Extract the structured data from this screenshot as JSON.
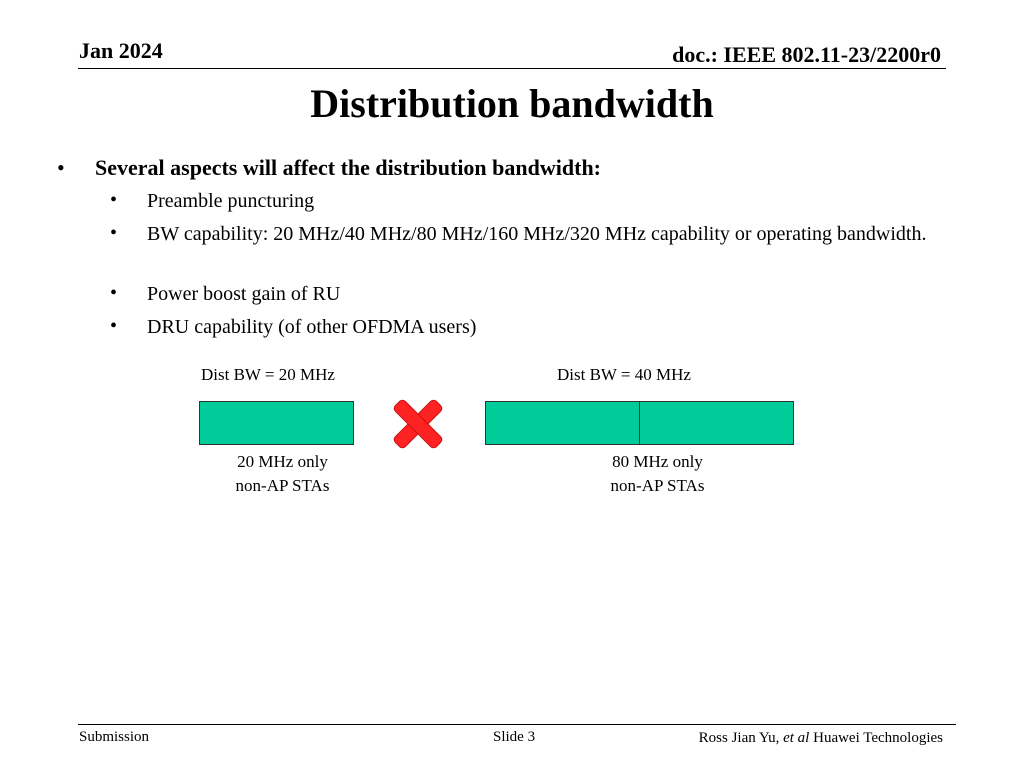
{
  "header": {
    "date": "Jan 2024",
    "doc_id": "doc.: IEEE 802.11-23/2200r0"
  },
  "title": "Distribution bandwidth",
  "main_bullet": "Several aspects will affect the distribution bandwidth:",
  "sub_bullets": [
    "Preamble puncturing",
    "BW capability: 20 MHz/40 MHz/80 MHz/160 MHz/320 MHz capability or operating bandwidth.",
    "Power boost gain of RU",
    "DRU capability (of other OFDMA users)"
  ],
  "diagram": {
    "left_label": "Dist BW = 20 MHz",
    "right_label": "Dist BW = 40 MHz",
    "left_caption_line1": "20 MHz only",
    "left_caption_line2": "non-AP STAs",
    "right_caption_line1": "80 MHz only",
    "right_caption_line2": "non-AP STAs",
    "box_color": "#00cc99",
    "cross_color": "#ff2222",
    "cross_icon": "red-x-cross"
  },
  "footer": {
    "left": "Submission",
    "center": "Slide 3",
    "author": "Ross Jian Yu,",
    "author_etal": "et al",
    "org": "Huawei Technologies"
  }
}
